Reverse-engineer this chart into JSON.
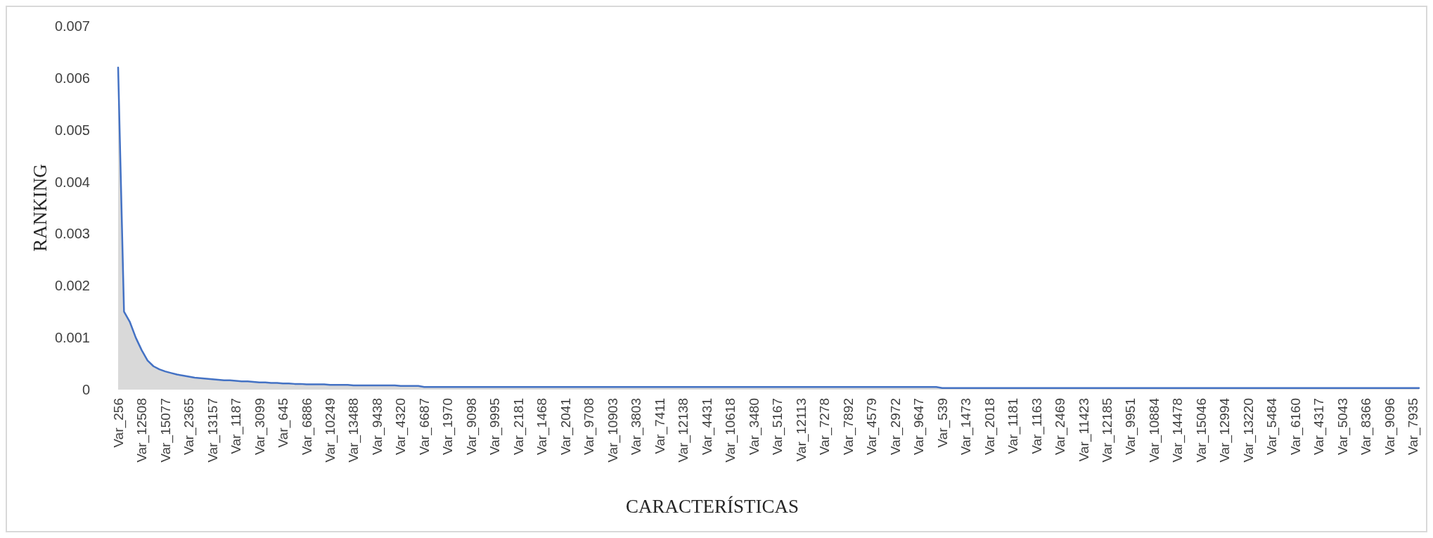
{
  "chart_data": {
    "type": "area",
    "xlabel": "CARACTERÍSTICAS",
    "ylabel": "RANKING",
    "categories": [
      "Var_256",
      null,
      null,
      null,
      "Var_12508",
      null,
      null,
      null,
      "Var_15077",
      null,
      null,
      null,
      "Var_2365",
      null,
      null,
      null,
      "Var_13157",
      null,
      null,
      null,
      "Var_1187",
      null,
      null,
      null,
      "Var_3099",
      null,
      null,
      null,
      "Var_645",
      null,
      null,
      null,
      "Var_6886",
      null,
      null,
      null,
      "Var_10249",
      null,
      null,
      null,
      "Var_13488",
      null,
      null,
      null,
      "Var_9438",
      null,
      null,
      null,
      "Var_4320",
      null,
      null,
      null,
      "Var_6687",
      null,
      null,
      null,
      "Var_1970",
      null,
      null,
      null,
      "Var_9098",
      null,
      null,
      null,
      "Var_9995",
      null,
      null,
      null,
      "Var_2181",
      null,
      null,
      null,
      "Var_1468",
      null,
      null,
      null,
      "Var_2041",
      null,
      null,
      null,
      "Var_9708",
      null,
      null,
      null,
      "Var_10903",
      null,
      null,
      null,
      "Var_3803",
      null,
      null,
      null,
      "Var_7411",
      null,
      null,
      null,
      "Var_12138",
      null,
      null,
      null,
      "Var_4431",
      null,
      null,
      null,
      "Var_10618",
      null,
      null,
      null,
      "Var_3480",
      null,
      null,
      null,
      "Var_5167",
      null,
      null,
      null,
      "Var_12113",
      null,
      null,
      null,
      "Var_7278",
      null,
      null,
      null,
      "Var_7892",
      null,
      null,
      null,
      "Var_4579",
      null,
      null,
      null,
      "Var_2972",
      null,
      null,
      null,
      "Var_9647",
      null,
      null,
      null,
      "Var_539",
      null,
      null,
      null,
      "Var_1473",
      null,
      null,
      null,
      "Var_2018",
      null,
      null,
      null,
      "Var_1181",
      null,
      null,
      null,
      "Var_1163",
      null,
      null,
      null,
      "Var_2469",
      null,
      null,
      null,
      "Var_11423",
      null,
      null,
      null,
      "Var_12185",
      null,
      null,
      null,
      "Var_9951",
      null,
      null,
      null,
      "Var_10884",
      null,
      null,
      null,
      "Var_14478",
      null,
      null,
      null,
      "Var_15046",
      null,
      null,
      null,
      "Var_12994",
      null,
      null,
      null,
      "Var_13220",
      null,
      null,
      null,
      "Var_5484",
      null,
      null,
      null,
      "Var_6160",
      null,
      null,
      null,
      "Var_4317",
      null,
      null,
      null,
      "Var_5043",
      null,
      null,
      null,
      "Var_8366",
      null,
      null,
      null,
      "Var_9096",
      null,
      null,
      null,
      "Var_7935",
      null
    ],
    "series": [
      {
        "color": "#4472c4",
        "values": [
          0.0062,
          0.0015,
          0.0013,
          0.001,
          0.00076,
          0.00056,
          0.00045,
          0.00039,
          0.00035,
          0.00032,
          0.00029,
          0.00027,
          0.00025,
          0.00023,
          0.00022,
          0.00021,
          0.0002,
          0.00019,
          0.00018,
          0.00018,
          0.00017,
          0.00016,
          0.00016,
          0.00015,
          0.00014,
          0.00014,
          0.00013,
          0.00013,
          0.00012,
          0.00012,
          0.00011,
          0.00011,
          0.0001,
          0.0001,
          0.0001,
          0.0001,
          9e-05,
          9e-05,
          9e-05,
          9e-05,
          8e-05,
          8e-05,
          8e-05,
          8e-05,
          8e-05,
          8e-05,
          8e-05,
          8e-05,
          7e-05,
          7e-05,
          7e-05,
          7e-05,
          5e-05,
          5e-05,
          5e-05,
          5e-05,
          5e-05,
          5e-05,
          5e-05,
          5e-05,
          5e-05,
          5e-05,
          5e-05,
          5e-05,
          5e-05,
          5e-05,
          5e-05,
          5e-05,
          5e-05,
          5e-05,
          5e-05,
          5e-05,
          5e-05,
          5e-05,
          5e-05,
          5e-05,
          5e-05,
          5e-05,
          5e-05,
          5e-05,
          5e-05,
          5e-05,
          5e-05,
          5e-05,
          5e-05,
          5e-05,
          5e-05,
          5e-05,
          5e-05,
          5e-05,
          5e-05,
          5e-05,
          5e-05,
          5e-05,
          5e-05,
          5e-05,
          5e-05,
          5e-05,
          5e-05,
          5e-05,
          5e-05,
          5e-05,
          5e-05,
          5e-05,
          5e-05,
          5e-05,
          5e-05,
          5e-05,
          5e-05,
          5e-05,
          5e-05,
          5e-05,
          5e-05,
          5e-05,
          5e-05,
          5e-05,
          5e-05,
          5e-05,
          5e-05,
          5e-05,
          5e-05,
          5e-05,
          5e-05,
          5e-05,
          5e-05,
          5e-05,
          5e-05,
          5e-05,
          5e-05,
          5e-05,
          5e-05,
          5e-05,
          5e-05,
          5e-05,
          5e-05,
          5e-05,
          5e-05,
          5e-05,
          5e-05,
          5e-05,
          3e-05,
          3e-05,
          3e-05,
          3e-05,
          3e-05,
          3e-05,
          3e-05,
          3e-05,
          3e-05,
          3e-05,
          3e-05,
          3e-05,
          3e-05,
          3e-05,
          3e-05,
          3e-05,
          3e-05,
          3e-05,
          3e-05,
          3e-05,
          3e-05,
          3e-05,
          3e-05,
          3e-05,
          3e-05,
          3e-05,
          3e-05,
          3e-05,
          3e-05,
          3e-05,
          3e-05,
          3e-05,
          3e-05,
          3e-05,
          3e-05,
          3e-05,
          3e-05,
          3e-05,
          3e-05,
          3e-05,
          3e-05,
          3e-05,
          3e-05,
          3e-05,
          3e-05,
          3e-05,
          3e-05,
          3e-05,
          3e-05,
          3e-05,
          3e-05,
          3e-05,
          3e-05,
          3e-05,
          3e-05,
          3e-05,
          3e-05,
          3e-05,
          3e-05,
          3e-05,
          3e-05,
          3e-05,
          3e-05,
          3e-05,
          3e-05,
          3e-05,
          3e-05,
          3e-05,
          3e-05,
          3e-05,
          3e-05,
          3e-05,
          3e-05,
          3e-05,
          3e-05,
          3e-05,
          3e-05,
          3e-05,
          3e-05,
          3e-05,
          3e-05,
          3e-05
        ]
      }
    ],
    "ylim": [
      0,
      0.007
    ],
    "yticks": [
      0,
      0.001,
      0.002,
      0.003,
      0.004,
      0.005,
      0.006,
      0.007
    ]
  }
}
